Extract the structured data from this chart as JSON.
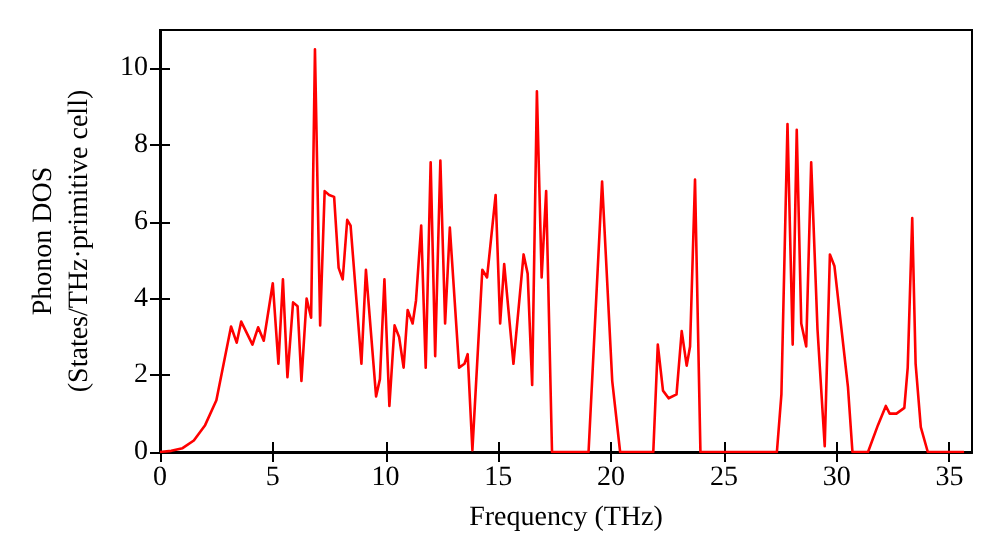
{
  "chart_data": {
    "type": "line",
    "xlabel": "Frequency (THz)",
    "ylabel": "Phonon DOS\n(States/THz·primitive cell)",
    "xlim": [
      0,
      36
    ],
    "ylim": [
      0,
      11
    ],
    "xticks": [
      0,
      5,
      10,
      15,
      20,
      25,
      30,
      35
    ],
    "yticks": [
      0,
      2,
      4,
      6,
      8,
      10
    ],
    "grid": false,
    "marker": "none",
    "line_style": "solid",
    "series": [
      {
        "color": "#ff0000",
        "x": [
          0,
          0.5,
          1.0,
          1.5,
          2.0,
          2.5,
          3.15,
          3.4,
          3.6,
          4.1,
          4.35,
          4.6,
          5.0,
          5.25,
          5.45,
          5.65,
          5.9,
          6.1,
          6.27,
          6.5,
          6.7,
          6.87,
          7.1,
          7.3,
          7.5,
          7.72,
          7.92,
          8.1,
          8.3,
          8.45,
          8.93,
          9.13,
          9.58,
          9.75,
          9.95,
          10.17,
          10.4,
          10.6,
          10.8,
          10.98,
          11.2,
          11.35,
          11.58,
          11.78,
          12.0,
          12.2,
          12.43,
          12.64,
          12.85,
          13.26,
          13.5,
          13.64,
          13.85,
          14.29,
          14.5,
          14.88,
          15.08,
          15.26,
          15.67,
          16.12,
          16.3,
          16.5,
          16.71,
          16.92,
          17.12,
          17.38,
          19.0,
          19.6,
          20.05,
          20.4,
          21.87,
          22.07,
          22.3,
          22.55,
          22.9,
          23.13,
          23.35,
          23.5,
          23.72,
          23.96,
          27.35,
          27.55,
          27.82,
          28.05,
          28.23,
          28.43,
          28.65,
          28.87,
          29.15,
          29.47,
          29.7,
          29.9,
          30.5,
          30.7,
          31.39,
          31.83,
          32.18,
          32.35,
          32.65,
          33.0,
          33.15,
          33.35,
          33.5,
          33.73,
          34.04,
          35.65
        ],
        "values": [
          0,
          0.03,
          0.1,
          0.3,
          0.7,
          1.35,
          3.27,
          2.85,
          3.4,
          2.8,
          3.25,
          2.9,
          4.4,
          2.3,
          4.5,
          1.95,
          3.9,
          3.8,
          1.85,
          4.0,
          3.5,
          10.5,
          3.3,
          6.8,
          6.7,
          6.65,
          4.8,
          4.5,
          6.05,
          5.9,
          2.3,
          4.75,
          1.45,
          1.9,
          4.5,
          1.2,
          3.3,
          3.0,
          2.2,
          3.7,
          3.35,
          3.95,
          5.9,
          2.2,
          7.55,
          2.5,
          7.6,
          3.35,
          5.85,
          2.2,
          2.3,
          2.55,
          0.05,
          4.75,
          4.55,
          6.7,
          3.35,
          4.9,
          2.3,
          5.15,
          4.65,
          1.75,
          9.4,
          4.55,
          6.8,
          0,
          0,
          7.05,
          1.85,
          0,
          0,
          2.8,
          1.6,
          1.4,
          1.5,
          3.15,
          2.25,
          2.75,
          7.1,
          0,
          0,
          1.5,
          8.55,
          2.8,
          8.4,
          3.35,
          2.75,
          7.55,
          3.2,
          0.15,
          5.15,
          4.85,
          1.7,
          0,
          0,
          0.7,
          1.2,
          1.0,
          1.0,
          1.15,
          2.2,
          6.1,
          2.3,
          0.65,
          0,
          0
        ]
      }
    ]
  }
}
